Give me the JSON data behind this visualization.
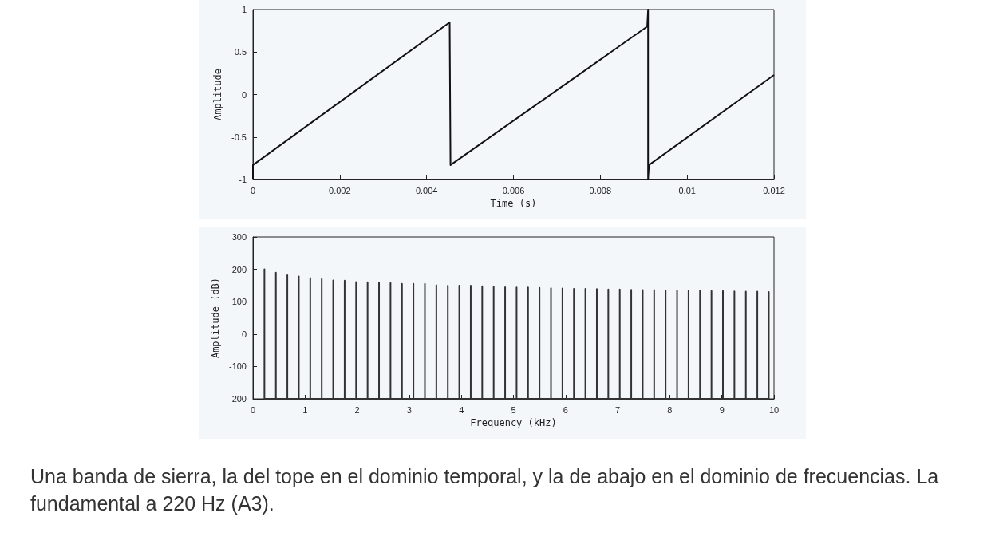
{
  "chart_data": [
    {
      "type": "line",
      "xlabel": "Time (s)",
      "ylabel": "Amplitude",
      "color": "#111111",
      "marker": "none",
      "grid": false,
      "x": [
        0,
        0,
        0.00453,
        0.00455,
        0.00908,
        0.0091,
        0.0091,
        0.00912,
        0.012
      ],
      "values": [
        -1,
        -0.83,
        0.85,
        -0.83,
        0.8,
        1,
        -1,
        -0.83,
        0.23
      ],
      "xlim": [
        0,
        0.012
      ],
      "xticks": [
        0,
        0.002,
        0.004,
        0.006,
        0.008,
        0.01,
        0.012
      ],
      "ylim": [
        -1,
        1
      ],
      "yticks": [
        -1,
        -0.5,
        0,
        0.5,
        1
      ]
    },
    {
      "type": "line",
      "xlabel": "Frequency (kHz)",
      "ylabel": "Amplitude (dB)",
      "color": "#333333",
      "marker": "none",
      "grid": false,
      "annotations": [
        "Una banda de sierra, la del tope en el dominio temporal, y la de abajo en el dominio de frecuencias. La fundamental a 220 Hz (A3)."
      ],
      "x": [
        0.22,
        0.22,
        0.22,
        0.44,
        0.44,
        0.44,
        0.66,
        0.66,
        0.66,
        0.88,
        0.88,
        0.88,
        1.1,
        1.1,
        1.1,
        1.32,
        1.32,
        1.32,
        1.54,
        1.54,
        1.54,
        1.76,
        1.76,
        1.76,
        1.98,
        1.98,
        1.98,
        2.2,
        2.2,
        2.2,
        2.42,
        2.42,
        2.42,
        2.64,
        2.64,
        2.64,
        2.86,
        2.86,
        2.86,
        3.08,
        3.08,
        3.08,
        3.3,
        3.3,
        3.3,
        3.52,
        3.52,
        3.52,
        3.74,
        3.74,
        3.74,
        3.96,
        3.96,
        3.96,
        4.18,
        4.18,
        4.18,
        4.4,
        4.4,
        4.4,
        4.62,
        4.62,
        4.62,
        4.84,
        4.84,
        4.84,
        5.06,
        5.06,
        5.06,
        5.28,
        5.28,
        5.28,
        5.5,
        5.5,
        5.5,
        5.72,
        5.72,
        5.72,
        5.94,
        5.94,
        5.94,
        6.16,
        6.16,
        6.16,
        6.38,
        6.38,
        6.38,
        6.6,
        6.6,
        6.6,
        6.82,
        6.82,
        6.82,
        7.04,
        7.04,
        7.04,
        7.26,
        7.26,
        7.26,
        7.48,
        7.48,
        7.48,
        7.7,
        7.7,
        7.7,
        7.92,
        7.92,
        7.92,
        8.14,
        8.14,
        8.14,
        8.36,
        8.36,
        8.36,
        8.58,
        8.58,
        8.58,
        8.8,
        8.8,
        8.8,
        9.02,
        9.02,
        9.02,
        9.24,
        9.24,
        9.24,
        9.46,
        9.46,
        9.46,
        9.68,
        9.68,
        9.68,
        9.9,
        9.9,
        9.9
      ],
      "values": [
        -200,
        200,
        -200,
        -200,
        190,
        -200,
        -200,
        182,
        -200,
        -200,
        178,
        -200,
        -200,
        173,
        -200,
        -200,
        170,
        -200,
        -200,
        166,
        -200,
        -200,
        165,
        -200,
        -200,
        161,
        -200,
        -200,
        160,
        -200,
        -200,
        159,
        -200,
        -200,
        158,
        -200,
        -200,
        155,
        -200,
        -200,
        155,
        -200,
        -200,
        155,
        -200,
        -200,
        151,
        -200,
        -200,
        150,
        -200,
        -200,
        150,
        -200,
        -200,
        150,
        -200,
        -200,
        148,
        -200,
        -200,
        147,
        -200,
        -200,
        145,
        -200,
        -200,
        144,
        -200,
        -200,
        144,
        -200,
        -200,
        143,
        -200,
        -200,
        142,
        -200,
        -200,
        141,
        -200,
        -200,
        140,
        -200,
        -200,
        140,
        -200,
        -200,
        139,
        -200,
        -200,
        138,
        -200,
        -200,
        138,
        -200,
        -200,
        137,
        -200,
        -200,
        136,
        -200,
        -200,
        136,
        -200,
        -200,
        135,
        -200,
        -200,
        135,
        -200,
        -200,
        134,
        -200,
        -200,
        134,
        -200,
        -200,
        133,
        -200,
        -200,
        133,
        -200,
        -200,
        132,
        -200,
        -200,
        131,
        -200,
        -200,
        131,
        -200,
        -200,
        130,
        -200
      ],
      "xlim": [
        0,
        10
      ],
      "xticks": [
        0,
        1,
        2,
        3,
        4,
        5,
        6,
        7,
        8,
        9,
        10
      ],
      "ylim": [
        -200,
        300
      ],
      "yticks": [
        -200,
        -100,
        0,
        100,
        200,
        300
      ]
    }
  ]
}
